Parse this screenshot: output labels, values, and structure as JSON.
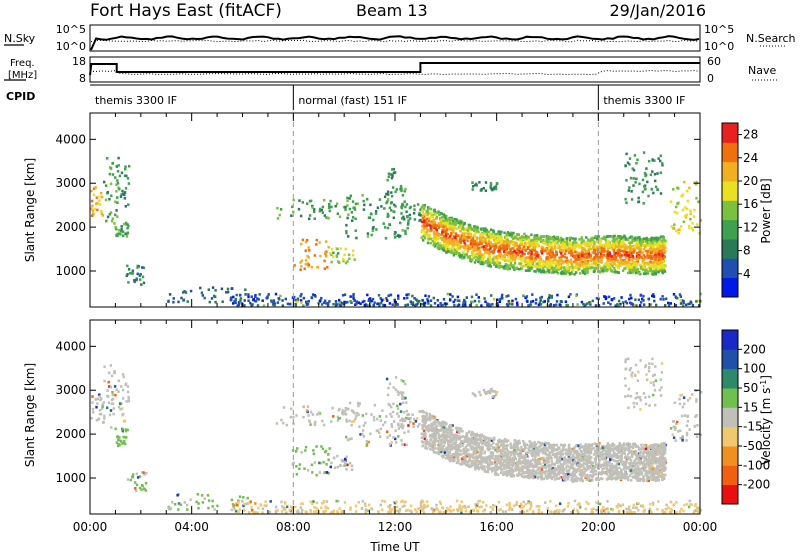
{
  "header": {
    "title": "Fort Hays East (fitACF)",
    "beam": "Beam 13",
    "date": "29/Jan/2016"
  },
  "strips": {
    "nsky": {
      "label": "N.Sky",
      "ticks": [
        "10^5",
        "10^0"
      ]
    },
    "nsearch": {
      "label": "N.Search",
      "ticks": [
        "10^5",
        "10^0"
      ]
    },
    "freq": {
      "label1": "Freq.",
      "label2": "[MHz]",
      "ticks": [
        "18",
        "8"
      ]
    },
    "nave": {
      "label": "Nave",
      "ticks": [
        "60",
        "0"
      ]
    },
    "cpid": {
      "label": "CPID",
      "segments": [
        {
          "start_h": 0,
          "text": "themis 3300 IF"
        },
        {
          "start_h": 8,
          "text": "normal (fast) 151 IF"
        },
        {
          "start_h": 20,
          "text": "themis 3300 IF"
        }
      ]
    }
  },
  "chart_data": [
    {
      "type": "heatmap",
      "name": "power",
      "xlabel": "",
      "ylabel": "Slant Range [km]",
      "x_range_hours": [
        0,
        24
      ],
      "ylim": [
        180,
        4600
      ],
      "yticks": [
        "1000",
        "2000",
        "3000",
        "4000"
      ],
      "colorbar": {
        "label": "Power [dB]",
        "range": [
          0,
          30
        ],
        "ticks": [
          "4",
          "8",
          "12",
          "16",
          "20",
          "24",
          "28"
        ],
        "colors": [
          "#0018e8",
          "#214fb0",
          "#2a7a5a",
          "#3fa050",
          "#7cc040",
          "#e8e020",
          "#f0b020",
          "#f07010",
          "#e82020"
        ]
      },
      "echo_regions": [
        {
          "t0": 0.0,
          "t1": 0.5,
          "r0": 2200,
          "r1": 2900,
          "level": 22
        },
        {
          "t0": 0.5,
          "t1": 1.1,
          "r0": 2100,
          "r1": 3600,
          "level": 12
        },
        {
          "t0": 0.9,
          "t1": 1.5,
          "r0": 1700,
          "r1": 2100,
          "level": 12
        },
        {
          "t0": 1.0,
          "t1": 1.5,
          "r0": 2200,
          "r1": 3400,
          "level": 10
        },
        {
          "t0": 1.4,
          "t1": 2.2,
          "r0": 650,
          "r1": 1100,
          "level": 9
        },
        {
          "t0": 3.0,
          "t1": 6.2,
          "r0": 250,
          "r1": 600,
          "level": 7
        },
        {
          "t0": 7.3,
          "t1": 10.5,
          "r0": 2150,
          "r1": 2600,
          "level": 12
        },
        {
          "t0": 7.9,
          "t1": 9.4,
          "r0": 1000,
          "r1": 1700,
          "level": 23
        },
        {
          "t0": 9.4,
          "t1": 10.4,
          "r0": 1150,
          "r1": 1500,
          "level": 16
        },
        {
          "t0": 10.0,
          "t1": 12.5,
          "r0": 1700,
          "r1": 2700,
          "level": 11
        },
        {
          "t0": 11.6,
          "t1": 12.4,
          "r0": 2600,
          "r1": 3300,
          "level": 11
        },
        {
          "t0": 12.2,
          "t1": 13.0,
          "r0": 2100,
          "r1": 2500,
          "level": 10
        },
        {
          "t0": 15.0,
          "t1": 16.0,
          "r0": 2800,
          "r1": 3000,
          "level": 10
        },
        {
          "t0": 21.0,
          "t1": 22.5,
          "r0": 2500,
          "r1": 3700,
          "level": 10
        },
        {
          "t0": 22.8,
          "t1": 24.0,
          "r0": 1800,
          "r1": 3000,
          "level": 18
        }
      ],
      "echo_band": {
        "hours": [
          13.0,
          14.0,
          15.0,
          16.0,
          17.0,
          18.0,
          19.0,
          20.0,
          21.0,
          22.0,
          22.6
        ],
        "center_km": [
          2100,
          1800,
          1600,
          1450,
          1400,
          1350,
          1300,
          1350,
          1350,
          1300,
          1350
        ],
        "half_width_km": 420,
        "core_level": 27,
        "edge_level": 12
      },
      "ground_scatter_band": {
        "t0": 5.5,
        "t1": 24.0,
        "r0": 180,
        "r1": 450,
        "level": 5
      },
      "dashed_lines_hours": [
        8,
        20
      ]
    },
    {
      "type": "heatmap",
      "name": "velocity",
      "xlabel": "Time UT",
      "ylabel": "Slant Range [km]",
      "x_range_hours": [
        0,
        24
      ],
      "ylim": [
        180,
        4600
      ],
      "yticks": [
        "1000",
        "2000",
        "3000",
        "4000"
      ],
      "xticks": [
        "00:00",
        "04:00",
        "08:00",
        "12:00",
        "16:00",
        "20:00",
        "00:00"
      ],
      "colorbar": {
        "label": "Velocity [m s",
        "label_sup": "-1",
        "label_end": "]",
        "range": [
          -250,
          250
        ],
        "ticks": [
          "200",
          "100",
          "50",
          "15",
          "-15",
          "-50",
          "-100",
          "-200"
        ],
        "colors": [
          "#e81010",
          "#f06010",
          "#f09020",
          "#f0c870",
          "#c0c0b8",
          "#70c050",
          "#2c8a6a",
          "#2050a8",
          "#1a28c8"
        ]
      },
      "echo_regions": [
        {
          "t0": 0.0,
          "t1": 0.5,
          "r0": 2200,
          "r1": 2900,
          "level": 0
        },
        {
          "t0": 0.5,
          "t1": 1.1,
          "r0": 2100,
          "r1": 3600,
          "level": 0
        },
        {
          "t0": 0.9,
          "t1": 1.5,
          "r0": 1700,
          "r1": 2100,
          "level": 60
        },
        {
          "t0": 1.0,
          "t1": 1.5,
          "r0": 2200,
          "r1": 3400,
          "level": 0
        },
        {
          "t0": 1.4,
          "t1": 2.2,
          "r0": 650,
          "r1": 1100,
          "level": 40
        },
        {
          "t0": 3.0,
          "t1": 6.2,
          "r0": 250,
          "r1": 600,
          "level": 45
        },
        {
          "t0": 7.3,
          "t1": 10.5,
          "r0": 2150,
          "r1": 2600,
          "level": 0
        },
        {
          "t0": 7.9,
          "t1": 9.4,
          "r0": 1000,
          "r1": 1700,
          "level": 45
        },
        {
          "t0": 9.4,
          "t1": 10.4,
          "r0": 1150,
          "r1": 1500,
          "level": 0
        },
        {
          "t0": 10.0,
          "t1": 12.5,
          "r0": 1700,
          "r1": 2700,
          "level": 0
        },
        {
          "t0": 11.6,
          "t1": 12.4,
          "r0": 2600,
          "r1": 3300,
          "level": 0
        },
        {
          "t0": 12.2,
          "t1": 13.0,
          "r0": 2100,
          "r1": 2500,
          "level": 0
        },
        {
          "t0": 15.0,
          "t1": 16.0,
          "r0": 2800,
          "r1": 3000,
          "level": 0
        },
        {
          "t0": 21.0,
          "t1": 22.5,
          "r0": 2500,
          "r1": 3700,
          "level": 0
        },
        {
          "t0": 22.8,
          "t1": 24.0,
          "r0": 1800,
          "r1": 3000,
          "level": 0
        }
      ],
      "echo_band": {
        "hours": [
          13.0,
          14.0,
          15.0,
          16.0,
          17.0,
          18.0,
          19.0,
          20.0,
          21.0,
          22.0,
          22.6
        ],
        "center_km": [
          2100,
          1800,
          1600,
          1450,
          1400,
          1350,
          1300,
          1350,
          1350,
          1300,
          1350
        ],
        "half_width_km": 420,
        "core_level": 0,
        "edge_level": 0
      },
      "ground_scatter_band": {
        "t0": 5.5,
        "t1": 24.0,
        "r0": 180,
        "r1": 450,
        "level": -40
      },
      "dashed_lines_hours": [
        8,
        20
      ]
    }
  ]
}
